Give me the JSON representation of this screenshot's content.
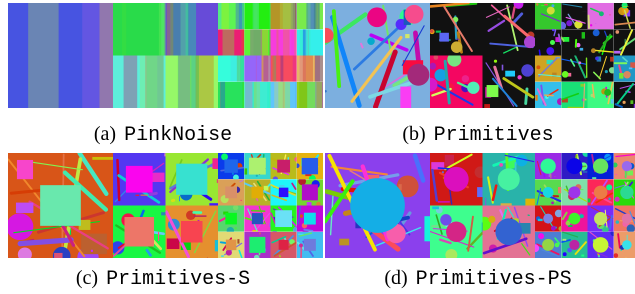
{
  "panels": [
    {
      "label": "(a)",
      "name": "PinkNoise"
    },
    {
      "label": "(b)",
      "name": "Primitives"
    },
    {
      "label": "(c)",
      "name": "Primitives-S"
    },
    {
      "label": "(d)",
      "name": "Primitives-PS"
    }
  ]
}
